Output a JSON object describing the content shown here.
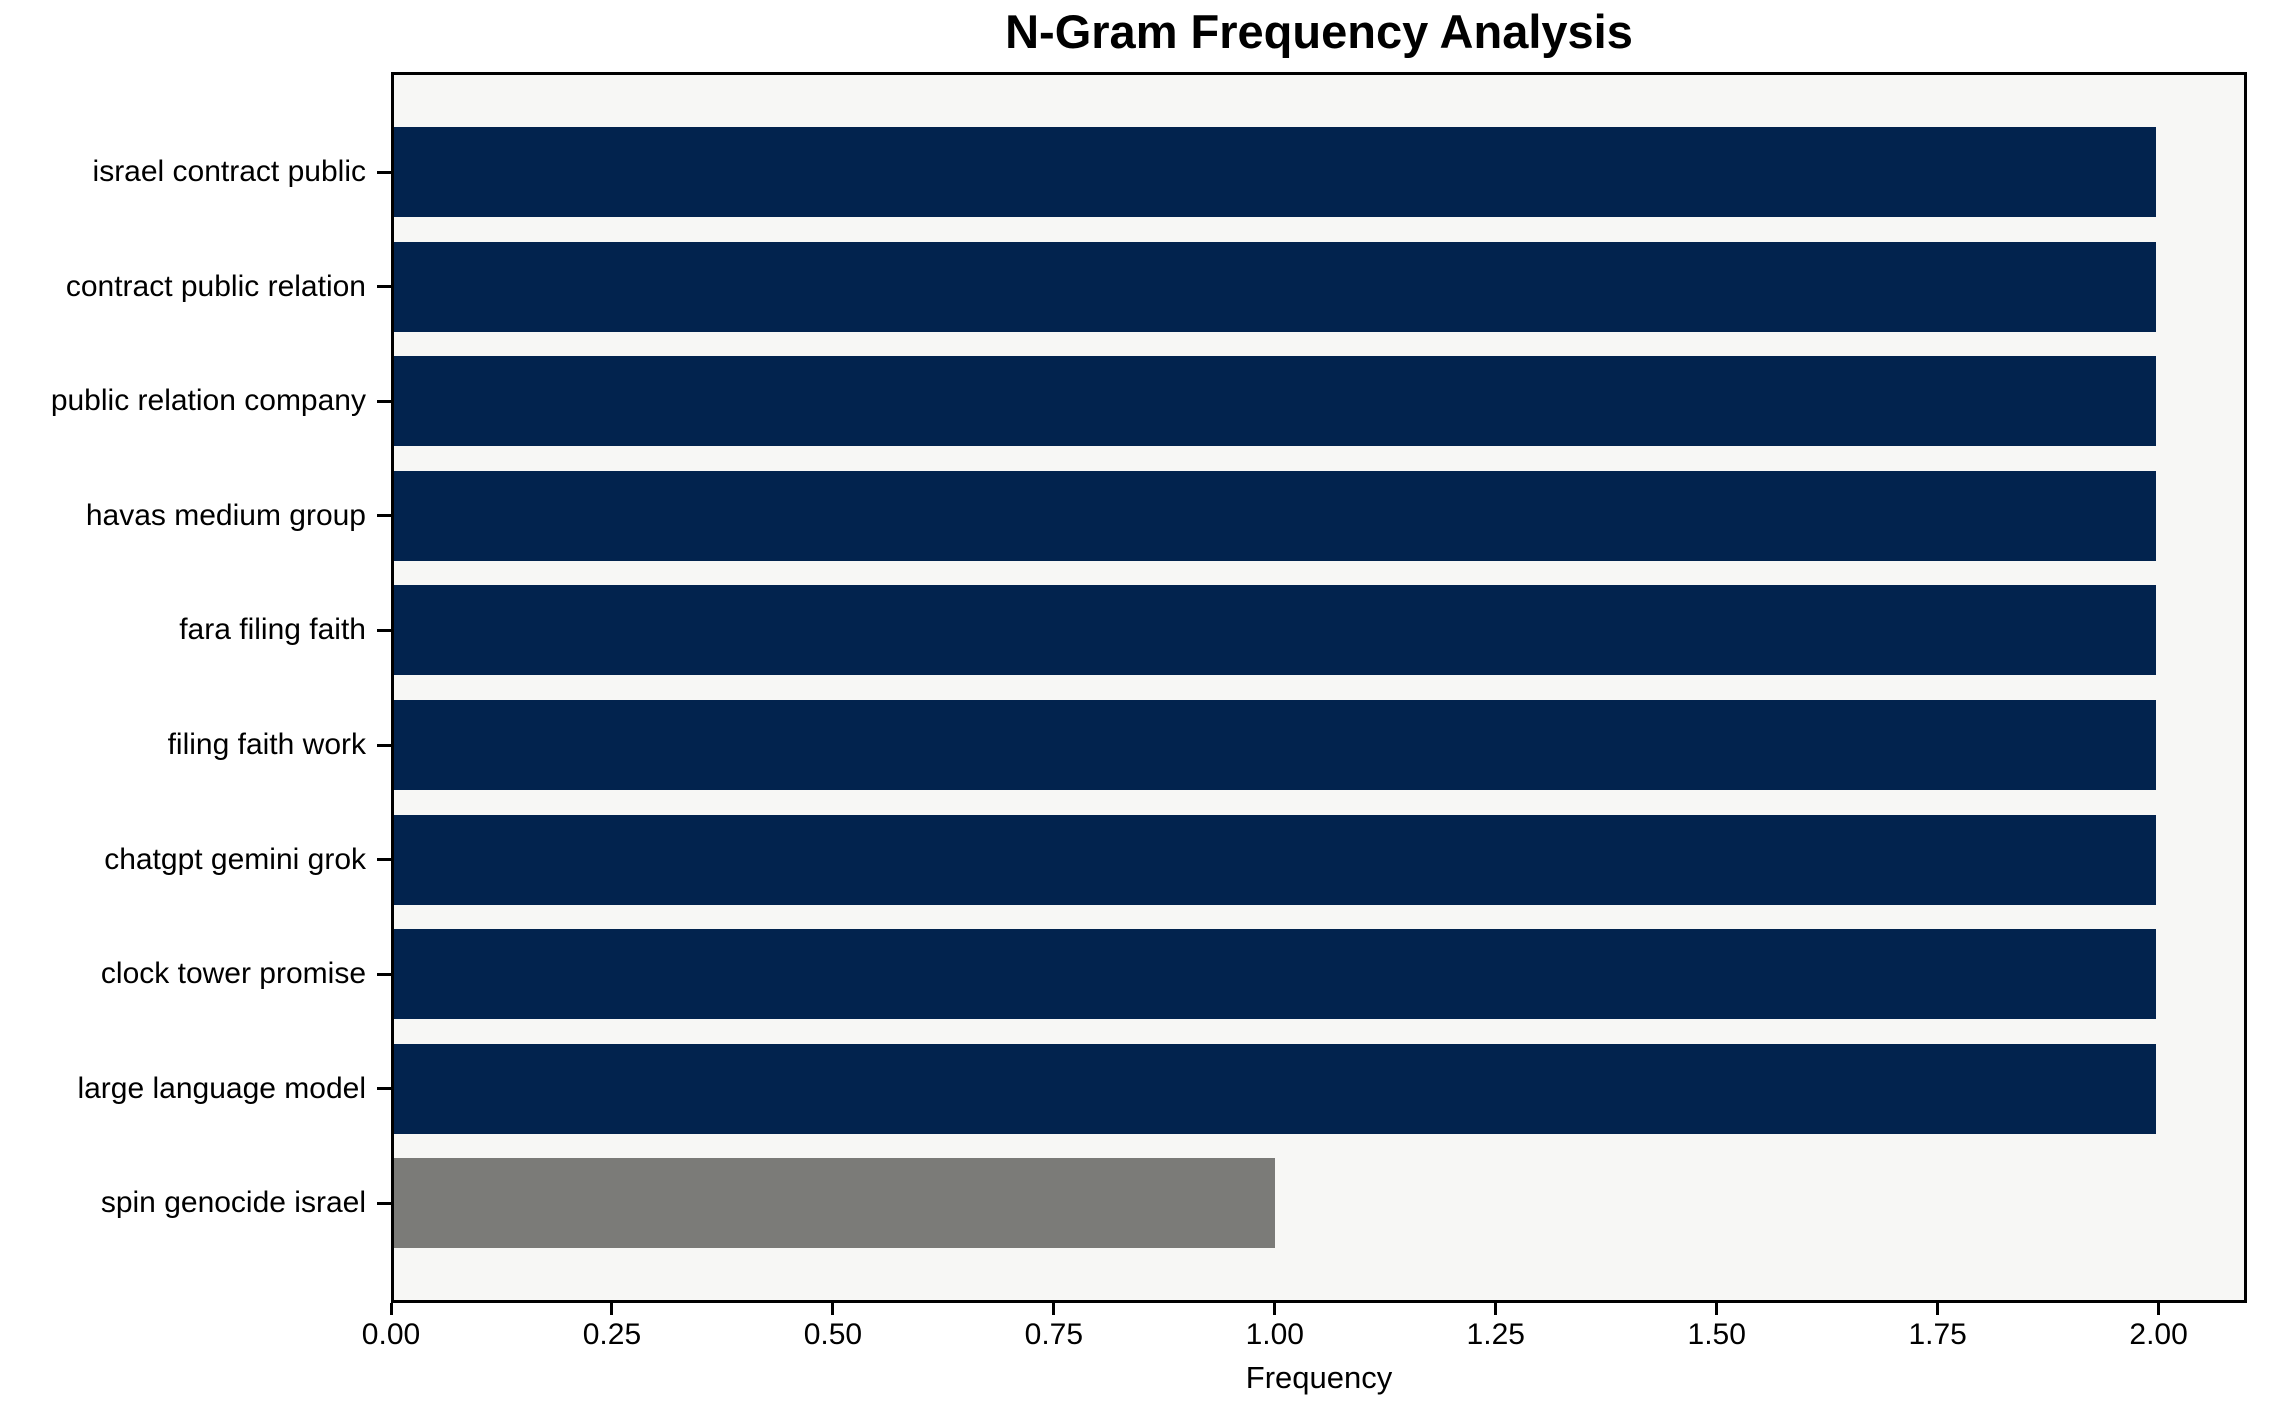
{
  "chart_data": {
    "type": "bar",
    "orientation": "horizontal",
    "title": "N-Gram Frequency Analysis",
    "xlabel": "Frequency",
    "ylabel": "",
    "categories": [
      "israel contract public",
      "contract public relation",
      "public relation company",
      "havas medium group",
      "fara filing faith",
      "filing faith work",
      "chatgpt gemini grok",
      "clock tower promise",
      "large language model",
      "spin genocide israel"
    ],
    "values": [
      2,
      2,
      2,
      2,
      2,
      2,
      2,
      2,
      2,
      1
    ],
    "bar_colors": [
      "#02234e",
      "#02234e",
      "#02234e",
      "#02234e",
      "#02234e",
      "#02234e",
      "#02234e",
      "#02234e",
      "#02234e",
      "#7b7b78"
    ],
    "xlim": [
      0,
      2.1
    ],
    "xticks": [
      0.0,
      0.25,
      0.5,
      0.75,
      1.0,
      1.25,
      1.5,
      1.75,
      2.0
    ],
    "xtick_labels": [
      "0.00",
      "0.25",
      "0.50",
      "0.75",
      "1.00",
      "1.25",
      "1.50",
      "1.75",
      "2.00"
    ],
    "grid": false,
    "legend_position": "none",
    "plot_background": "#f7f7f5",
    "figure_background": "#ffffff",
    "spine_color": "#000000"
  }
}
